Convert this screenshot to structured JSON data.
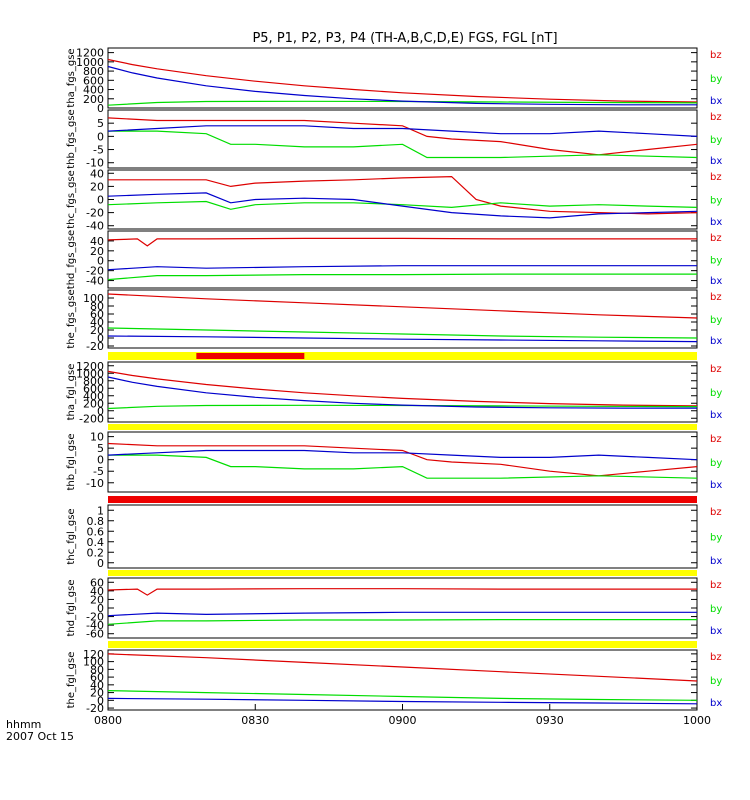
{
  "title": "P5, P1, P2, P3, P4 (TH-A,B,C,D,E) FGS, FGL [nT]",
  "time_axis": {
    "label_line1": "hhmm",
    "label_line2": "2007 Oct 15",
    "start_min": 480,
    "end_min": 600,
    "tick_labels": [
      "0800",
      "0830",
      "0900",
      "0930",
      "1000"
    ],
    "tick_values_min": [
      480,
      510,
      540,
      570,
      600
    ]
  },
  "colors": {
    "bx": "#0000cc",
    "by": "#00dd00",
    "bz": "#dd0000",
    "yellow": "#ffff00",
    "red": "#ee0000"
  },
  "legend": [
    "bz",
    "by",
    "bx"
  ],
  "chart_data": [
    {
      "type": "line",
      "ylabel": "tha_fgs_gse",
      "ylim": [
        0,
        1300
      ],
      "yticks": [
        1200,
        1000,
        800,
        600,
        400,
        200,
        0
      ],
      "series": [
        {
          "name": "bz",
          "x": [
            480,
            485,
            490,
            500,
            510,
            520,
            530,
            540,
            555,
            570,
            585,
            600
          ],
          "y": [
            1050,
            940,
            850,
            700,
            580,
            480,
            400,
            330,
            250,
            190,
            150,
            130
          ]
        },
        {
          "name": "by",
          "x": [
            480,
            490,
            500,
            520,
            540,
            560,
            580,
            600
          ],
          "y": [
            60,
            120,
            140,
            145,
            140,
            130,
            120,
            110
          ]
        },
        {
          "name": "bx",
          "x": [
            480,
            485,
            490,
            500,
            510,
            520,
            530,
            540,
            555,
            570,
            585,
            600
          ],
          "y": [
            900,
            760,
            650,
            480,
            360,
            270,
            200,
            150,
            100,
            80,
            70,
            70
          ]
        }
      ]
    },
    {
      "type": "line",
      "ylabel": "thb_fgs_gse",
      "ylim": [
        -12,
        10
      ],
      "yticks": [
        5,
        0,
        -5,
        -10
      ],
      "series": [
        {
          "name": "bz",
          "x": [
            480,
            490,
            500,
            510,
            520,
            530,
            540,
            545,
            550,
            560,
            570,
            580,
            590,
            600
          ],
          "y": [
            7,
            6,
            6,
            6,
            6,
            5,
            4,
            0,
            -1,
            -2,
            -5,
            -7,
            -5,
            -3
          ]
        },
        {
          "name": "by",
          "x": [
            480,
            490,
            500,
            505,
            510,
            520,
            530,
            540,
            545,
            560,
            580,
            600
          ],
          "y": [
            2,
            2,
            1,
            -3,
            -3,
            -4,
            -4,
            -3,
            -8,
            -8,
            -7,
            -8
          ]
        },
        {
          "name": "bx",
          "x": [
            480,
            490,
            500,
            510,
            520,
            530,
            540,
            550,
            560,
            570,
            580,
            590,
            600
          ],
          "y": [
            2,
            3,
            4,
            4,
            4,
            3,
            3,
            2,
            1,
            1,
            2,
            1,
            0
          ]
        }
      ]
    },
    {
      "type": "line",
      "ylabel": "thc_fgs_gse",
      "ylim": [
        -45,
        45
      ],
      "yticks": [
        40,
        20,
        0,
        -20,
        -40
      ],
      "series": [
        {
          "name": "bz",
          "x": [
            480,
            490,
            500,
            505,
            510,
            520,
            530,
            540,
            550,
            555,
            560,
            570,
            580,
            590,
            600
          ],
          "y": [
            30,
            30,
            30,
            20,
            25,
            28,
            30,
            33,
            35,
            0,
            -10,
            -18,
            -20,
            -22,
            -20
          ]
        },
        {
          "name": "by",
          "x": [
            480,
            490,
            500,
            505,
            510,
            520,
            530,
            540,
            550,
            560,
            570,
            580,
            590,
            600
          ],
          "y": [
            -8,
            -5,
            -3,
            -15,
            -8,
            -5,
            -5,
            -8,
            -12,
            -5,
            -10,
            -8,
            -10,
            -12
          ]
        },
        {
          "name": "bx",
          "x": [
            480,
            490,
            500,
            505,
            510,
            520,
            530,
            540,
            550,
            560,
            570,
            580,
            590,
            600
          ],
          "y": [
            5,
            8,
            10,
            -5,
            0,
            2,
            0,
            -10,
            -20,
            -25,
            -28,
            -22,
            -20,
            -18
          ]
        }
      ]
    },
    {
      "type": "line",
      "ylabel": "thd_fgs_gse",
      "ylim": [
        -55,
        60
      ],
      "yticks": [
        40,
        20,
        0,
        -20,
        -40
      ],
      "series": [
        {
          "name": "bz",
          "x": [
            480,
            486,
            488,
            490,
            500,
            520,
            540,
            560,
            580,
            600
          ],
          "y": [
            42,
            44,
            30,
            44,
            44,
            45,
            45,
            44,
            44,
            44
          ]
        },
        {
          "name": "by",
          "x": [
            480,
            490,
            500,
            520,
            540,
            560,
            580,
            600
          ],
          "y": [
            -38,
            -30,
            -30,
            -28,
            -28,
            -27,
            -27,
            -27
          ]
        },
        {
          "name": "bx",
          "x": [
            480,
            490,
            500,
            520,
            540,
            560,
            580,
            600
          ],
          "y": [
            -18,
            -12,
            -15,
            -12,
            -10,
            -10,
            -10,
            -10
          ]
        }
      ]
    },
    {
      "type": "line",
      "ylabel": "the_fgs_gse",
      "ylim": [
        -25,
        120
      ],
      "yticks": [
        100,
        80,
        60,
        40,
        20,
        0,
        -20
      ],
      "series": [
        {
          "name": "bz",
          "x": [
            480,
            500,
            520,
            540,
            560,
            580,
            600
          ],
          "y": [
            110,
            98,
            88,
            78,
            68,
            58,
            50
          ]
        },
        {
          "name": "by",
          "x": [
            480,
            500,
            520,
            540,
            560,
            580,
            600
          ],
          "y": [
            25,
            20,
            15,
            10,
            5,
            2,
            0
          ]
        },
        {
          "name": "bx",
          "x": [
            480,
            500,
            520,
            540,
            560,
            580,
            600
          ],
          "y": [
            5,
            3,
            0,
            -3,
            -5,
            -7,
            -9
          ]
        }
      ]
    },
    {
      "type": "line",
      "ylabel": "tha_fgl_gse",
      "ylim": [
        -300,
        1300
      ],
      "yticks": [
        1200,
        1000,
        800,
        600,
        400,
        200,
        0,
        -200
      ],
      "series": [
        {
          "name": "bz",
          "x": [
            480,
            485,
            490,
            500,
            510,
            520,
            530,
            540,
            555,
            570,
            585,
            600
          ],
          "y": [
            1050,
            940,
            850,
            700,
            580,
            480,
            400,
            330,
            250,
            190,
            150,
            130
          ]
        },
        {
          "name": "by",
          "x": [
            480,
            490,
            500,
            520,
            540,
            560,
            580,
            600
          ],
          "y": [
            60,
            120,
            140,
            145,
            140,
            130,
            120,
            110
          ]
        },
        {
          "name": "bx",
          "x": [
            480,
            485,
            490,
            500,
            510,
            520,
            530,
            540,
            555,
            570,
            585,
            600
          ],
          "y": [
            900,
            760,
            650,
            480,
            360,
            270,
            200,
            150,
            100,
            80,
            70,
            70
          ]
        }
      ]
    },
    {
      "type": "line",
      "ylabel": "thb_fgl_gse",
      "ylim": [
        -14,
        12
      ],
      "yticks": [
        10,
        5,
        0,
        -5,
        -10
      ],
      "series": [
        {
          "name": "bz",
          "x": [
            480,
            490,
            500,
            510,
            520,
            530,
            540,
            545,
            550,
            560,
            570,
            580,
            590,
            600
          ],
          "y": [
            7,
            6,
            6,
            6,
            6,
            5,
            4,
            0,
            -1,
            -2,
            -5,
            -7,
            -5,
            -3
          ]
        },
        {
          "name": "by",
          "x": [
            480,
            490,
            500,
            505,
            510,
            520,
            530,
            540,
            545,
            560,
            580,
            600
          ],
          "y": [
            2,
            2,
            1,
            -3,
            -3,
            -4,
            -4,
            -3,
            -8,
            -8,
            -7,
            -8
          ]
        },
        {
          "name": "bx",
          "x": [
            480,
            490,
            500,
            510,
            520,
            530,
            540,
            550,
            560,
            570,
            580,
            590,
            600
          ],
          "y": [
            2,
            3,
            4,
            4,
            4,
            3,
            3,
            2,
            1,
            1,
            2,
            1,
            0
          ]
        }
      ]
    },
    {
      "type": "line",
      "ylabel": "thc_fgl_gse",
      "ylim": [
        -0.1,
        1.1
      ],
      "yticks": [
        1.0,
        0.8,
        0.6,
        0.4,
        0.2,
        0.0
      ],
      "series": []
    },
    {
      "type": "line",
      "ylabel": "thd_fgl_gse",
      "ylim": [
        -70,
        70
      ],
      "yticks": [
        60,
        40,
        20,
        0,
        -20,
        -40,
        -60
      ],
      "series": [
        {
          "name": "bz",
          "x": [
            480,
            486,
            488,
            490,
            500,
            520,
            540,
            560,
            580,
            600
          ],
          "y": [
            42,
            44,
            30,
            44,
            44,
            45,
            45,
            44,
            44,
            44
          ]
        },
        {
          "name": "by",
          "x": [
            480,
            490,
            500,
            520,
            540,
            560,
            580,
            600
          ],
          "y": [
            -38,
            -30,
            -30,
            -28,
            -28,
            -27,
            -27,
            -27
          ]
        },
        {
          "name": "bx",
          "x": [
            480,
            490,
            500,
            520,
            540,
            560,
            580,
            600
          ],
          "y": [
            -18,
            -12,
            -15,
            -12,
            -10,
            -10,
            -10,
            -10
          ]
        }
      ]
    },
    {
      "type": "line",
      "ylabel": "the_fgl_gse",
      "ylim": [
        -25,
        130
      ],
      "yticks": [
        120,
        100,
        80,
        60,
        40,
        20,
        0,
        -20
      ],
      "series": [
        {
          "name": "bz",
          "x": [
            480,
            500,
            520,
            540,
            560,
            580,
            600
          ],
          "y": [
            120,
            110,
            98,
            86,
            74,
            62,
            50
          ]
        },
        {
          "name": "by",
          "x": [
            480,
            500,
            520,
            540,
            560,
            580,
            600
          ],
          "y": [
            25,
            20,
            15,
            10,
            5,
            2,
            0
          ]
        },
        {
          "name": "bx",
          "x": [
            480,
            500,
            520,
            540,
            560,
            580,
            600
          ],
          "y": [
            5,
            3,
            0,
            -3,
            -5,
            -7,
            -9
          ]
        }
      ]
    }
  ],
  "status_bars": [
    {
      "after_panel": 4,
      "color": "yellow",
      "segments": [
        {
          "start": 498,
          "end": 520,
          "color": "red"
        }
      ]
    },
    {
      "after_panel": 5,
      "color": "yellow",
      "segments": []
    },
    {
      "after_panel": 6,
      "color": "red",
      "segments": []
    },
    {
      "after_panel": 7,
      "color": "yellow",
      "segments": []
    },
    {
      "after_panel": 8,
      "color": "yellow",
      "segments": []
    }
  ]
}
